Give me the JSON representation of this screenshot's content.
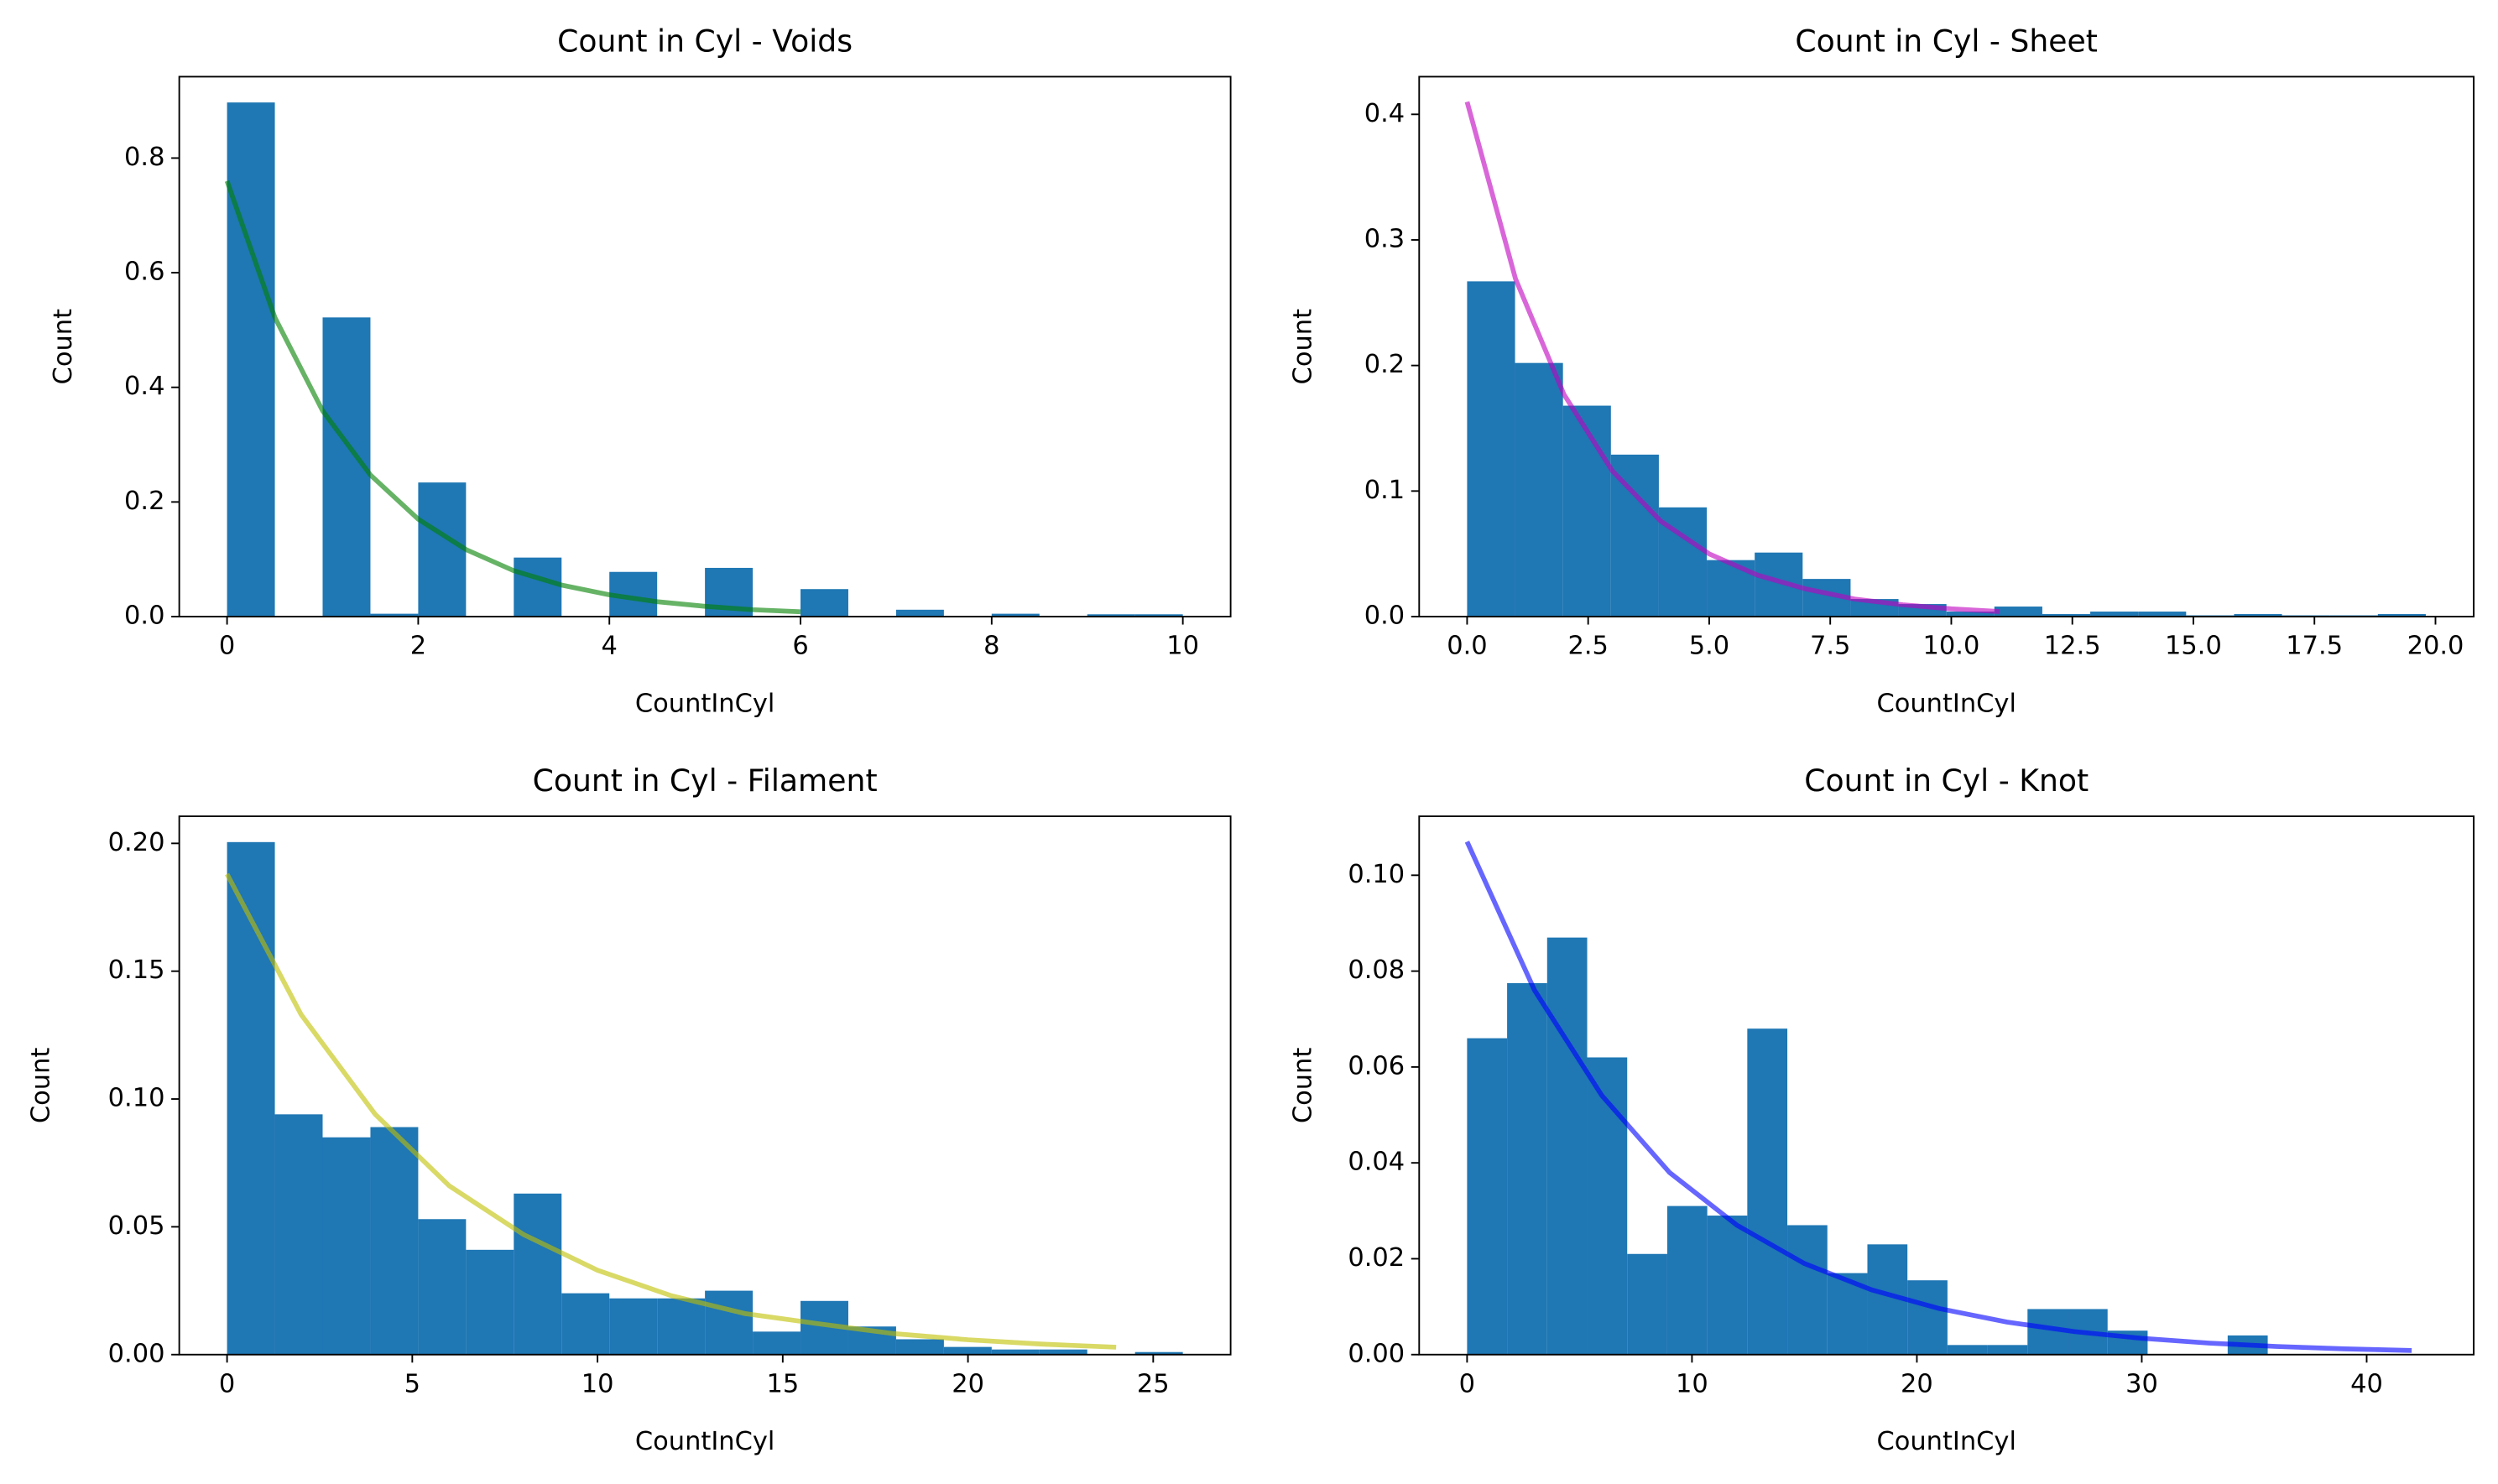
{
  "chart_data": [
    {
      "type": "histogram",
      "title": "Count in Cyl - Voids",
      "xlabel": "CountInCyl",
      "ylabel": "Count",
      "color": "#1f77b4",
      "bins": [
        0,
        0.5,
        1,
        1.5,
        2,
        2.5,
        3,
        3.5,
        4,
        4.5,
        5,
        5.5,
        6,
        6.5,
        7,
        7.5,
        8,
        8.5,
        9,
        9.5,
        10
      ],
      "counts": [
        0.897,
        0,
        0.522,
        0.005,
        0.234,
        0,
        0.103,
        0,
        0.078,
        0,
        0.085,
        0,
        0.048,
        0,
        0.012,
        0,
        0.005,
        0,
        0.004,
        0.004
      ],
      "curve": {
        "color": "#008000",
        "alpha": 0.6,
        "x": [
          0,
          0.5,
          1,
          1.5,
          2,
          2.5,
          3,
          3.5,
          4,
          4.5,
          5,
          5.5,
          6
        ],
        "values": [
          0.76,
          0.522,
          0.359,
          0.247,
          0.17,
          0.117,
          0.08,
          0.055,
          0.038,
          0.026,
          0.018,
          0.012,
          0.0084
        ]
      },
      "xlim": [
        -0.5,
        10.5
      ],
      "ylim": [
        0,
        0.942
      ],
      "xticks": [
        0,
        2,
        4,
        6,
        8,
        10
      ],
      "yticks": [
        {
          "value": 0,
          "label": "0.0"
        },
        0.2,
        0.4,
        0.6,
        0.8
      ]
    },
    {
      "type": "histogram",
      "title": "Count in Cyl - Sheet",
      "xlabel": "CountInCyl",
      "ylabel": "Count",
      "color": "#1f77b4",
      "bins": [
        0,
        0.99,
        1.98,
        2.97,
        3.96,
        4.95,
        5.94,
        6.93,
        7.92,
        8.91,
        9.9,
        10.89,
        11.88,
        12.87,
        13.86,
        14.85,
        15.84,
        16.83,
        17.82,
        18.81,
        19.8
      ],
      "counts": [
        0.267,
        0.202,
        0.168,
        0.129,
        0.087,
        0.045,
        0.051,
        0.03,
        0.014,
        0.01,
        0.004,
        0.008,
        0.002,
        0.004,
        0.004,
        0.001,
        0.002,
        0.001,
        0.001,
        0.002
      ],
      "curve": {
        "color": "#bf00bf",
        "alpha": 0.6,
        "x": [
          0,
          1,
          2,
          3,
          4,
          5,
          6,
          7,
          8,
          9,
          10,
          11
        ],
        "values": [
          0.41,
          0.269,
          0.177,
          0.116,
          0.076,
          0.05,
          0.033,
          0.022,
          0.014,
          0.0094,
          0.0062,
          0.004
        ]
      },
      "xlim": [
        -0.99,
        20.79
      ],
      "ylim": [
        0,
        0.43
      ],
      "xticks": [
        {
          "value": 0,
          "label": "0.0"
        },
        2.5,
        {
          "value": 5,
          "label": "5.0"
        },
        7.5,
        {
          "value": 10,
          "label": "10.0"
        },
        12.5,
        {
          "value": 15,
          "label": "15.0"
        },
        17.5,
        {
          "value": 20,
          "label": "20.0"
        }
      ],
      "yticks": [
        {
          "value": 0,
          "label": "0.0"
        },
        0.1,
        0.2,
        0.3,
        0.4
      ]
    },
    {
      "type": "histogram",
      "title": "Count in Cyl - Filament",
      "xlabel": "CountInCyl",
      "ylabel": "Count",
      "color": "#1f77b4",
      "bins": [
        0,
        1.29,
        2.58,
        3.87,
        5.16,
        6.45,
        7.74,
        9.03,
        10.32,
        11.61,
        12.9,
        14.19,
        15.48,
        16.77,
        18.06,
        19.35,
        20.64,
        21.93,
        23.22,
        24.51,
        25.8
      ],
      "counts": [
        0.2005,
        0.094,
        0.085,
        0.089,
        0.053,
        0.041,
        0.063,
        0.024,
        0.022,
        0.022,
        0.025,
        0.009,
        0.021,
        0.011,
        0.006,
        0.003,
        0.002,
        0.002,
        0,
        0.001
      ],
      "curve": {
        "color": "#bfbf00",
        "alpha": 0.6,
        "x": [
          0,
          2,
          4,
          6,
          8,
          10,
          12,
          14,
          16,
          18,
          20,
          22,
          24
        ],
        "values": [
          0.188,
          0.133,
          0.094,
          0.066,
          0.047,
          0.033,
          0.023,
          0.016,
          0.012,
          0.0082,
          0.0058,
          0.0041,
          0.0029
        ]
      },
      "xlim": [
        -1.29,
        27.09
      ],
      "ylim": [
        0,
        0.2106
      ],
      "xticks": [
        0,
        5,
        10,
        15,
        20,
        25
      ],
      "yticks": [
        {
          "value": 0,
          "label": "0.00"
        },
        0.05,
        {
          "value": 0.1,
          "label": "0.10"
        },
        0.15,
        {
          "value": 0.2,
          "label": "0.20"
        }
      ]
    },
    {
      "type": "histogram",
      "title": "Count in Cyl - Knot",
      "xlabel": "CountInCyl",
      "ylabel": "Count",
      "color": "#1f77b4",
      "bins": [
        0,
        1.78,
        3.56,
        5.34,
        7.12,
        8.9,
        10.68,
        12.46,
        14.24,
        16.02,
        17.8,
        19.58,
        21.36,
        23.14,
        24.92,
        26.7,
        28.48,
        30.26,
        32.04,
        33.82,
        35.6
      ],
      "counts": [
        0.066,
        0.0775,
        0.087,
        0.062,
        0.021,
        0.031,
        0.029,
        0.068,
        0.027,
        0.017,
        0.023,
        0.0155,
        0.002,
        0.002,
        0.0095,
        0.0095,
        0.005,
        0,
        0,
        0.004
      ],
      "curve": {
        "color": "#0000ff",
        "alpha": 0.6,
        "x": [
          0,
          3,
          6,
          9,
          12,
          15,
          18,
          21,
          24,
          27,
          30,
          33,
          36,
          39,
          42
        ],
        "values": [
          0.107,
          0.076,
          0.054,
          0.038,
          0.027,
          0.019,
          0.0135,
          0.0096,
          0.0068,
          0.0048,
          0.0034,
          0.0024,
          0.0017,
          0.0012,
          0.00086
        ]
      },
      "xlim": [
        -2.13,
        44.76
      ],
      "ylim": [
        0,
        0.1123
      ],
      "xticks": [
        0,
        10,
        20,
        30,
        40
      ],
      "yticks": [
        {
          "value": 0,
          "label": "0.00"
        },
        0.02,
        0.04,
        0.06,
        0.08,
        {
          "value": 0.1,
          "label": "0.10"
        }
      ]
    }
  ]
}
